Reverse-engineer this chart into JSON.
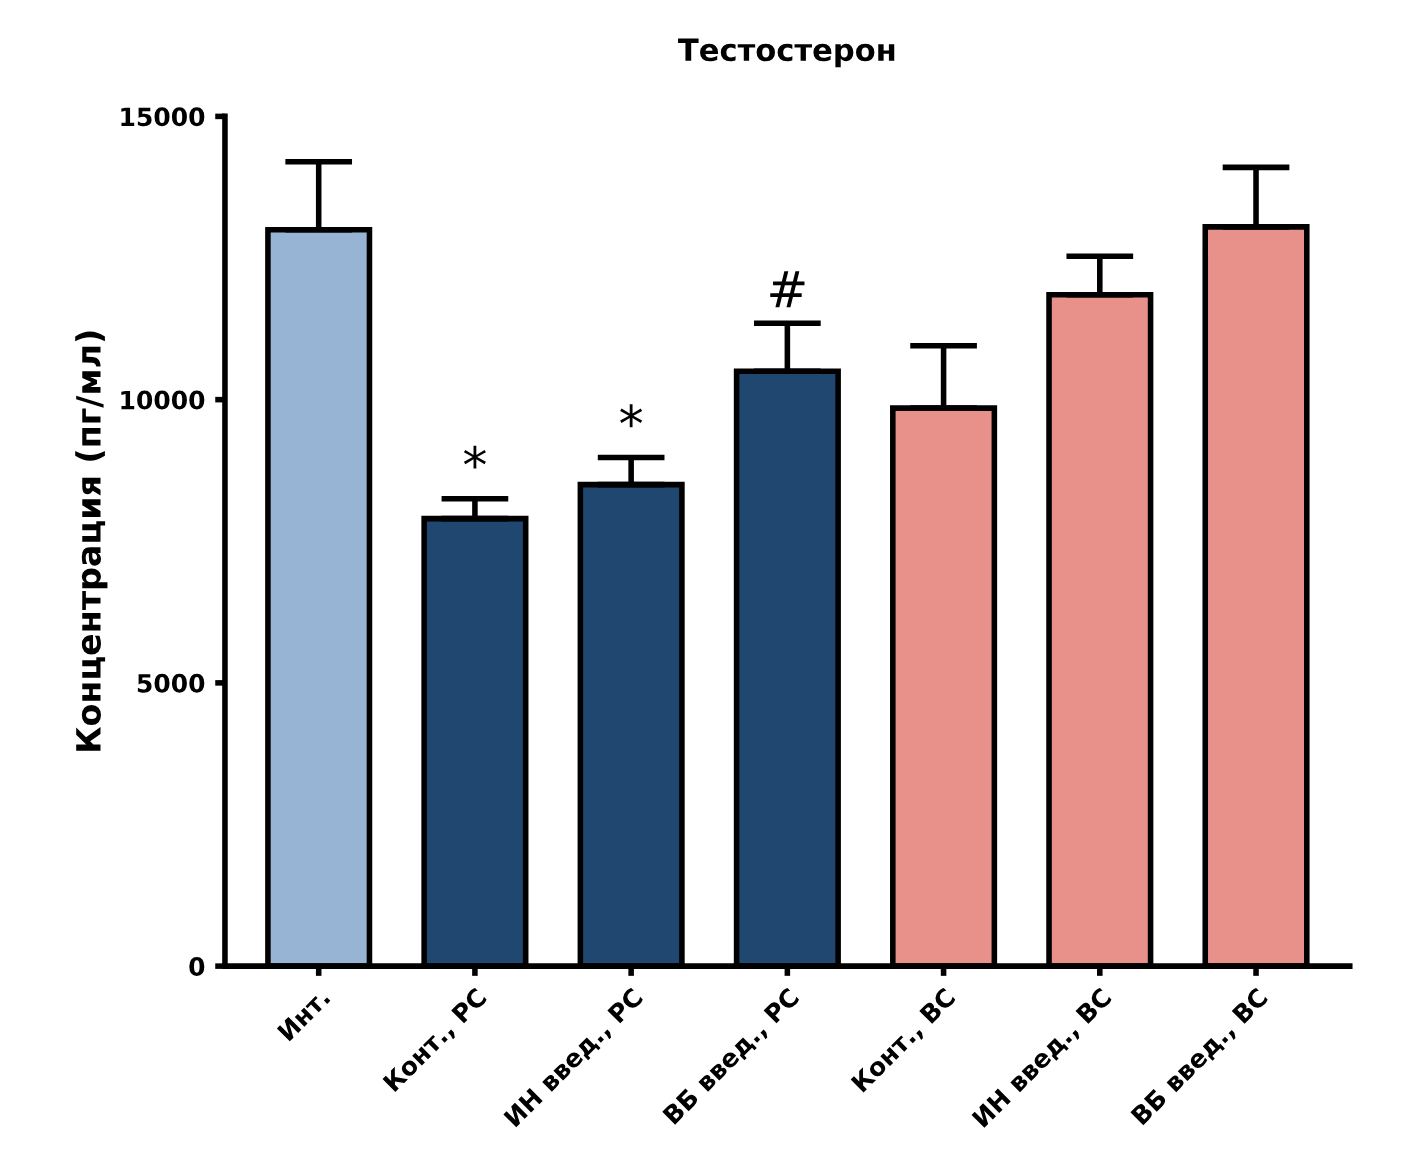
{
  "chart_data": {
    "type": "bar",
    "title": "Тестостерон",
    "ylabel": "Концентрация (пг/мл)",
    "categories": [
      "Инт.",
      "Конт., РС",
      "ИН введ., РС",
      "ВБ введ., РС",
      "Конт., ВС",
      "ИН введ., ВС",
      "ВБ введ., ВС"
    ],
    "values": [
      13000,
      7900,
      8500,
      10500,
      9850,
      11850,
      13050
    ],
    "errors": [
      [
        13000,
        14200
      ],
      [
        7900,
        8250
      ],
      [
        8500,
        8980
      ],
      [
        10500,
        11350
      ],
      [
        9850,
        10950
      ],
      [
        11850,
        12530
      ],
      [
        13050,
        14100
      ]
    ],
    "colors": [
      "#98b4d4",
      "#1f4770",
      "#1f4770",
      "#1f4770",
      "#e8908a",
      "#e8908a",
      "#e8908a"
    ],
    "ylim": [
      0,
      15000
    ],
    "yticks": [
      0,
      5000,
      10000,
      15000
    ],
    "grid": false,
    "annotations": [
      {
        "text": "*",
        "x": "Конт., РС",
        "y": 7900
      },
      {
        "text": "*",
        "x": "ИН введ., РС",
        "y": 8500
      },
      {
        "text": "#",
        "x": "ВБ введ., РС",
        "y": 10500
      }
    ]
  }
}
